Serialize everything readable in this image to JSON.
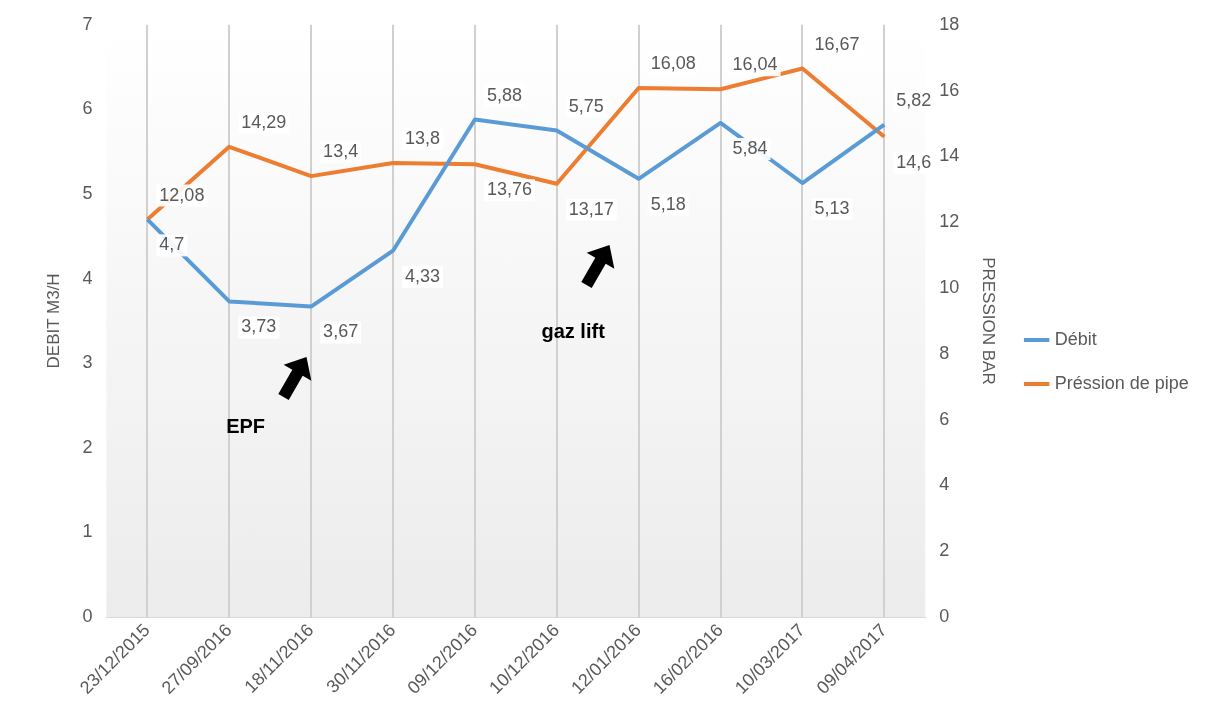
{
  "chart_data": {
    "type": "line",
    "categories": [
      "23/12/2015",
      "27/09/2016",
      "18/11/2016",
      "30/11/2016",
      "09/12/2016",
      "10/12/2016",
      "12/01/2016",
      "16/02/2016",
      "10/03/2017",
      "09/04/2017"
    ],
    "series": [
      {
        "name": "Débit",
        "color": "#5b9bd5",
        "values": [
          4.7,
          3.73,
          3.67,
          4.33,
          5.88,
          5.75,
          5.18,
          5.84,
          5.13,
          5.82
        ],
        "value_labels": [
          "4,7",
          "3,73",
          "3,67",
          "4,33",
          "5,88",
          "5,75",
          "5,18",
          "5,84",
          "5,13",
          "5,82"
        ]
      },
      {
        "name": "Préssion de pipe",
        "color": "#ed7d31",
        "axis": "y2",
        "values": [
          12.08,
          14.29,
          13.4,
          13.8,
          13.76,
          13.17,
          16.08,
          16.04,
          16.67,
          14.6
        ],
        "value_labels": [
          "12,08",
          "14,29",
          "13,4",
          "13,8",
          "13,76",
          "13,17",
          "16,08",
          "16,04",
          "16,67",
          "14,6"
        ]
      }
    ],
    "ylabel": "DEBIT M3/H",
    "y2label": "PRESSION BAR",
    "ylim": [
      0,
      7
    ],
    "yticks": [
      0,
      1,
      2,
      3,
      4,
      5,
      6,
      7
    ],
    "y2lim": [
      0,
      18
    ],
    "y2ticks": [
      0,
      2,
      4,
      6,
      8,
      10,
      12,
      14,
      16,
      18
    ],
    "annotations": [
      "EPF",
      "gaz lift"
    ],
    "grid": "x",
    "legend": "right",
    "marker": "none",
    "line_style": "solid"
  }
}
